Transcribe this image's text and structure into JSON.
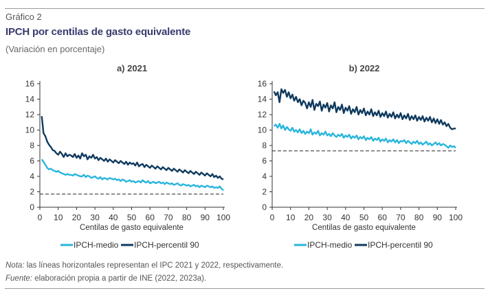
{
  "figure": {
    "label": "Gráfico 2",
    "title": "IPCH por centilas de gasto equivalente",
    "subtitle": "(Variación en porcentaje)",
    "note_label": "Nota:",
    "note_text": "las líneas horizontales representan el IPC 2021 y 2022, respectivamente.",
    "source_label": "Fuente:",
    "source_text": "elaboración propia a partir de INE (2022, 2023a)."
  },
  "colors": {
    "medio": "#29b5dc",
    "p90": "#0f3a5e",
    "ref_line": "#222222",
    "axis": "#333333"
  },
  "chart_data": [
    {
      "type": "line",
      "title": "a) 2021",
      "xlabel": "Centilas de gasto equivalente",
      "ylabel": "",
      "xlim": [
        0,
        100
      ],
      "ylim": [
        0,
        16
      ],
      "xticks": [
        0,
        10,
        20,
        30,
        40,
        50,
        60,
        70,
        80,
        90,
        100
      ],
      "yticks": [
        0,
        2,
        4,
        6,
        8,
        10,
        12,
        14,
        16
      ],
      "reference_line": 1.7,
      "legend_position": "bottom",
      "series": [
        {
          "name": "IPCH-medio",
          "color_key": "medio",
          "x_start": 1,
          "x_step": 1,
          "values": [
            6.2,
            5.9,
            5.5,
            5.1,
            4.9,
            5.0,
            4.8,
            4.7,
            4.6,
            4.7,
            4.5,
            4.4,
            4.3,
            4.2,
            4.3,
            4.2,
            4.2,
            4.1,
            4.3,
            4.2,
            4.1,
            4.0,
            4.0,
            4.2,
            3.9,
            4.1,
            4.0,
            3.8,
            3.9,
            4.0,
            3.8,
            3.7,
            3.9,
            3.6,
            3.8,
            3.7,
            3.6,
            3.8,
            3.7,
            3.6,
            3.7,
            3.5,
            3.6,
            3.4,
            3.6,
            3.5,
            3.3,
            3.4,
            3.5,
            3.3,
            3.4,
            3.2,
            3.3,
            3.4,
            3.2,
            3.5,
            3.3,
            3.2,
            3.4,
            3.1,
            3.2,
            3.3,
            3.1,
            3.2,
            3.3,
            3.1,
            3.2,
            3.0,
            3.2,
            3.1,
            3.0,
            3.1,
            2.9,
            3.0,
            3.1,
            2.9,
            2.8,
            3.0,
            2.9,
            2.8,
            2.9,
            2.7,
            2.8,
            2.9,
            2.7,
            2.8,
            2.6,
            2.8,
            2.7,
            2.6,
            2.8,
            2.7,
            2.6,
            2.7,
            2.5,
            2.6,
            2.5,
            2.7,
            2.4,
            2.2
          ]
        },
        {
          "name": "IPCH-percentil 90",
          "color_key": "p90",
          "x_start": 1,
          "x_step": 1,
          "values": [
            11.8,
            9.6,
            9.2,
            8.5,
            8.1,
            7.8,
            7.4,
            7.3,
            7.0,
            6.8,
            7.2,
            6.9,
            6.5,
            7.0,
            6.6,
            6.8,
            6.7,
            6.5,
            6.9,
            6.4,
            6.7,
            6.3,
            7.0,
            6.6,
            6.8,
            6.2,
            6.6,
            6.4,
            6.8,
            6.3,
            6.5,
            6.1,
            6.4,
            6.2,
            6.0,
            6.3,
            5.9,
            6.2,
            6.0,
            5.8,
            6.1,
            5.9,
            5.7,
            6.0,
            5.8,
            5.6,
            5.9,
            5.5,
            5.8,
            5.6,
            5.7,
            5.4,
            5.8,
            5.3,
            5.5,
            5.6,
            5.2,
            5.5,
            5.3,
            5.1,
            5.4,
            5.2,
            5.0,
            5.3,
            5.1,
            4.9,
            5.2,
            5.0,
            4.8,
            5.1,
            4.9,
            4.7,
            5.0,
            4.8,
            4.6,
            4.9,
            4.7,
            4.5,
            4.8,
            4.6,
            4.4,
            4.7,
            4.5,
            4.3,
            4.6,
            4.4,
            4.2,
            4.5,
            4.3,
            4.1,
            4.4,
            4.2,
            4.0,
            4.3,
            3.9,
            4.1,
            3.8,
            4.0,
            3.7,
            3.6
          ]
        }
      ]
    },
    {
      "type": "line",
      "title": "b) 2022",
      "xlabel": "Centilas de gasto equivalente",
      "ylabel": "",
      "xlim": [
        0,
        100
      ],
      "ylim": [
        0,
        16
      ],
      "xticks": [
        0,
        10,
        20,
        30,
        40,
        50,
        60,
        70,
        80,
        90,
        100
      ],
      "yticks": [
        0,
        2,
        4,
        6,
        8,
        10,
        12,
        14,
        16
      ],
      "reference_line": 7.3,
      "legend_position": "bottom",
      "series": [
        {
          "name": "IPCH-medio",
          "color_key": "medio",
          "x_start": 1,
          "x_step": 1,
          "values": [
            10.5,
            10.7,
            10.3,
            10.8,
            10.2,
            10.6,
            10.0,
            10.4,
            10.1,
            9.9,
            10.3,
            9.8,
            10.0,
            9.7,
            10.1,
            9.6,
            9.9,
            9.5,
            9.8,
            9.6,
            10.1,
            9.4,
            9.7,
            9.5,
            9.9,
            9.3,
            9.6,
            9.4,
            9.8,
            9.3,
            9.5,
            9.2,
            9.6,
            9.3,
            9.1,
            9.4,
            9.2,
            9.5,
            9.0,
            9.3,
            9.1,
            9.4,
            8.9,
            9.2,
            9.0,
            9.3,
            8.8,
            9.1,
            8.9,
            9.2,
            8.7,
            9.0,
            8.8,
            9.1,
            8.6,
            8.9,
            8.7,
            9.0,
            8.5,
            8.8,
            8.6,
            8.9,
            8.4,
            8.7,
            8.5,
            8.8,
            8.4,
            8.7,
            8.3,
            8.6,
            8.5,
            8.7,
            8.3,
            8.6,
            8.4,
            8.2,
            8.5,
            8.3,
            8.6,
            8.2,
            8.4,
            8.1,
            8.3,
            8.5,
            8.1,
            8.3,
            8.0,
            8.2,
            8.4,
            8.1,
            8.3,
            8.0,
            8.2,
            8.1,
            7.9,
            7.7,
            8.0,
            7.8,
            7.9,
            7.7
          ]
        },
        {
          "name": "IPCH-percentil 90",
          "color_key": "p90",
          "x_start": 1,
          "x_step": 1,
          "values": [
            15.0,
            14.5,
            14.9,
            13.6,
            15.3,
            14.8,
            15.2,
            14.3,
            14.9,
            14.1,
            14.6,
            13.8,
            14.3,
            13.6,
            14.0,
            13.2,
            13.8,
            13.5,
            12.8,
            13.6,
            13.0,
            13.9,
            12.6,
            13.4,
            13.1,
            13.7,
            12.5,
            13.3,
            12.9,
            13.5,
            12.4,
            13.2,
            12.8,
            13.6,
            12.3,
            13.0,
            12.6,
            13.3,
            12.2,
            12.9,
            12.5,
            13.1,
            12.1,
            12.7,
            12.3,
            13.0,
            12.0,
            12.6,
            12.2,
            12.8,
            11.9,
            12.4,
            12.0,
            12.7,
            11.8,
            12.3,
            11.9,
            12.5,
            11.7,
            12.2,
            11.8,
            12.4,
            11.6,
            12.1,
            11.7,
            12.3,
            11.5,
            12.0,
            11.6,
            12.2,
            11.4,
            11.9,
            11.5,
            12.1,
            11.3,
            11.8,
            11.4,
            11.9,
            11.2,
            11.7,
            11.3,
            11.8,
            11.1,
            11.6,
            11.2,
            11.7,
            11.0,
            11.5,
            10.9,
            11.4,
            10.8,
            11.3,
            10.7,
            11.0,
            10.5,
            10.8,
            10.3,
            10.1,
            10.2,
            10.2
          ]
        }
      ]
    }
  ]
}
